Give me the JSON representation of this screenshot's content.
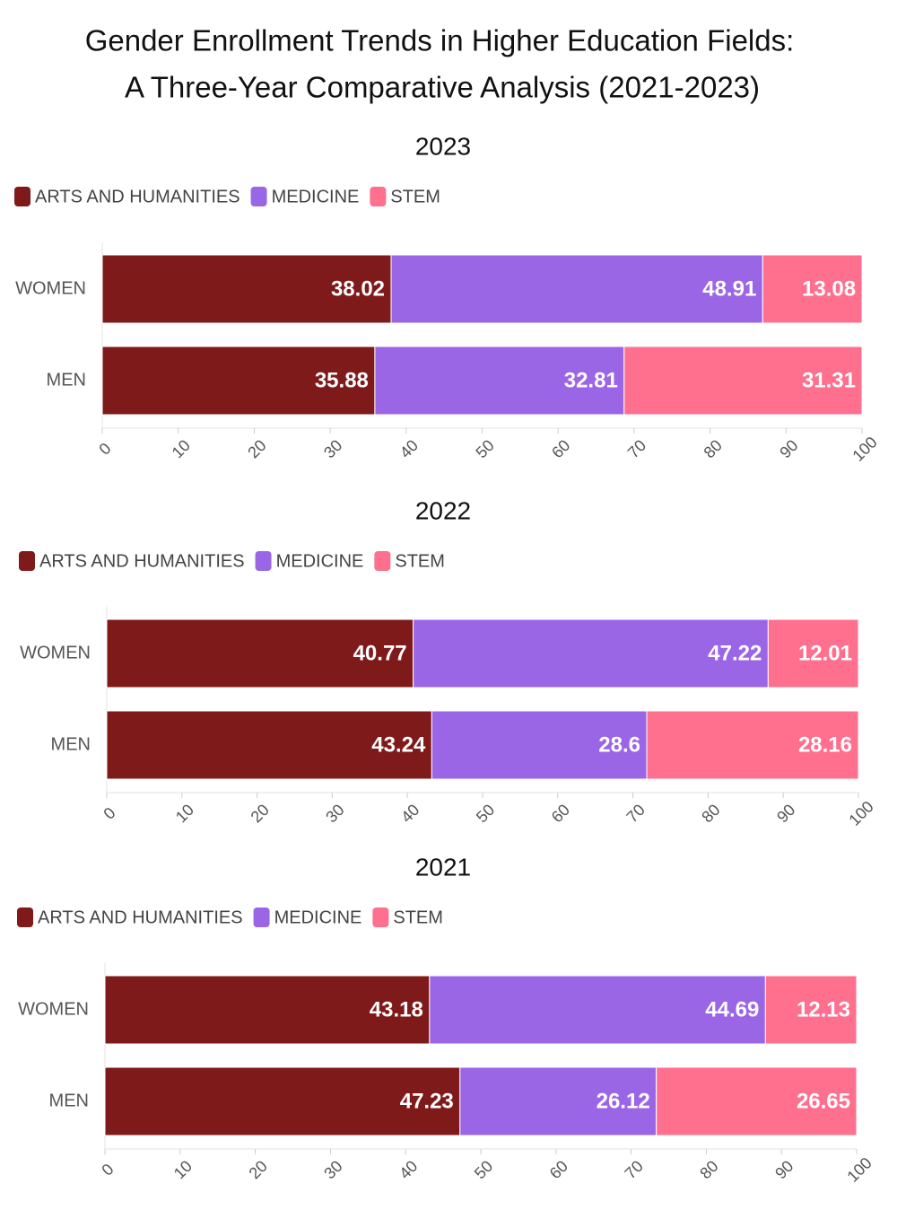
{
  "title": [
    "Gender Enrollment Trends in Higher Education Fields:",
    "A Three-Year Comparative Analysis (2021-2023)"
  ],
  "chart_data": [
    {
      "type": "bar",
      "orientation": "horizontal",
      "stacked": true,
      "subtitle": "2023",
      "categories": [
        "WOMEN",
        "MEN"
      ],
      "series": [
        {
          "name": "ARTS AND HUMANITIES",
          "color": "#7f1a1a",
          "values": [
            38.02,
            35.88
          ]
        },
        {
          "name": "MEDICINE",
          "color": "#9b66e6",
          "values": [
            48.91,
            32.81
          ]
        },
        {
          "name": "STEM",
          "color": "#ff6f8e",
          "values": [
            13.08,
            31.31
          ]
        }
      ],
      "xlim": [
        0,
        100
      ],
      "xticks": [
        0,
        10,
        20,
        30,
        40,
        50,
        60,
        70,
        80,
        90,
        100
      ],
      "legend": "top-left"
    },
    {
      "type": "bar",
      "orientation": "horizontal",
      "stacked": true,
      "subtitle": "2022",
      "categories": [
        "WOMEN",
        "MEN"
      ],
      "series": [
        {
          "name": "ARTS AND HUMANITIES",
          "color": "#7f1a1a",
          "values": [
            40.77,
            43.24
          ]
        },
        {
          "name": "MEDICINE",
          "color": "#9b66e6",
          "values": [
            47.22,
            28.6
          ]
        },
        {
          "name": "STEM",
          "color": "#ff6f8e",
          "values": [
            12.01,
            28.16
          ]
        }
      ],
      "xlim": [
        0,
        100
      ],
      "xticks": [
        0,
        10,
        20,
        30,
        40,
        50,
        60,
        70,
        80,
        90,
        100
      ],
      "legend": "top-left"
    },
    {
      "type": "bar",
      "orientation": "horizontal",
      "stacked": true,
      "subtitle": "2021",
      "categories": [
        "WOMEN",
        "MEN"
      ],
      "series": [
        {
          "name": "ARTS AND HUMANITIES",
          "color": "#7f1a1a",
          "values": [
            43.18,
            47.23
          ]
        },
        {
          "name": "MEDICINE",
          "color": "#9b66e6",
          "values": [
            44.69,
            26.12
          ]
        },
        {
          "name": "STEM",
          "color": "#ff6f8e",
          "values": [
            12.13,
            26.65
          ]
        }
      ],
      "xlim": [
        0,
        100
      ],
      "xticks": [
        0,
        10,
        20,
        30,
        40,
        50,
        60,
        70,
        80,
        90,
        100
      ],
      "legend": "top-left"
    }
  ]
}
